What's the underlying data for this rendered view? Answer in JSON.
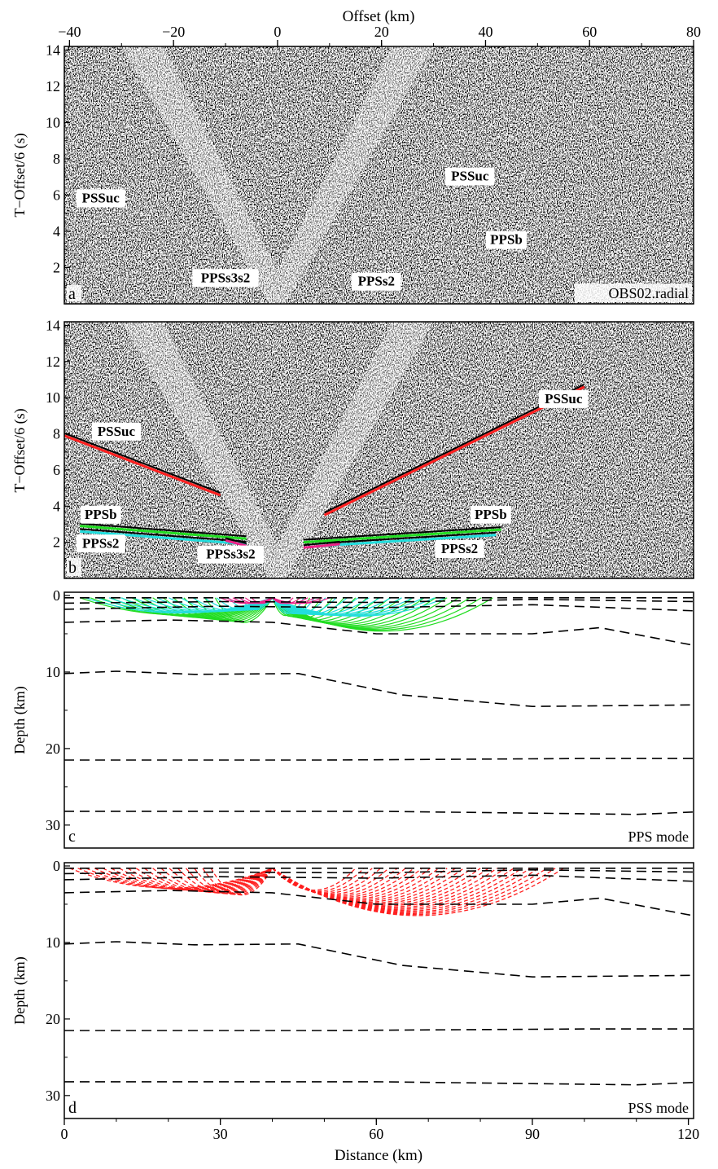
{
  "figure": {
    "top_axis": {
      "label": "Offset (km)",
      "ticks": [
        -40,
        -20,
        0,
        20,
        40,
        60,
        80
      ],
      "range": [
        -41,
        80
      ]
    },
    "bottom_axis": {
      "label": "Distance (km)",
      "ticks": [
        0,
        30,
        60,
        90,
        120
      ],
      "range": [
        0,
        121
      ]
    },
    "panels": [
      {
        "id": "a",
        "letter": "a",
        "ylabel": "T−Offset/6 (s)",
        "yticks": [
          2,
          4,
          6,
          8,
          10,
          12,
          14
        ],
        "ylim": [
          0,
          14
        ],
        "tag": "OBS02.radial",
        "phase_labels": [
          {
            "text": "PSSuc",
            "offset": -34,
            "t": 5.6,
            "color": "#000000"
          },
          {
            "text": "PSSuc",
            "offset": 37,
            "t": 6.8,
            "color": "#000000"
          },
          {
            "text": "PPSb",
            "offset": 44,
            "t": 3.3,
            "color": "#000000"
          },
          {
            "text": "PPSs3s2",
            "offset": -10,
            "t": 1.2,
            "color": "#000000"
          },
          {
            "text": "PPSs2",
            "offset": 19,
            "t": 1.0,
            "color": "#000000"
          }
        ]
      },
      {
        "id": "b",
        "letter": "b",
        "ylabel": "T−Offset/6 (s)",
        "yticks": [
          2,
          4,
          6,
          8,
          10,
          12,
          14
        ],
        "ylim": [
          0,
          14
        ],
        "phase_labels": [
          {
            "text": "PSSuc",
            "offset": -31,
            "t": 7.9,
            "color": "#ff2020"
          },
          {
            "text": "PSSuc",
            "offset": 55,
            "t": 9.7,
            "color": "#ff2020"
          },
          {
            "text": "PPSb",
            "offset": -34,
            "t": 3.3,
            "color": "#22dd22"
          },
          {
            "text": "PPSb",
            "offset": 41,
            "t": 3.3,
            "color": "#22dd22"
          },
          {
            "text": "PPSs2",
            "offset": -34,
            "t": 1.7,
            "color": "#22dddd"
          },
          {
            "text": "PPSs2",
            "offset": 35,
            "t": 1.4,
            "color": "#22dddd"
          },
          {
            "text": "PPSs3s2",
            "offset": -9,
            "t": 1.1,
            "color": "#ee2288"
          }
        ]
      },
      {
        "id": "c",
        "letter": "c",
        "ylabel": "Depth (km)",
        "yticks": [
          0,
          10,
          20,
          30
        ],
        "ylim": [
          33,
          0
        ],
        "tag": "PPS mode"
      },
      {
        "id": "d",
        "letter": "d",
        "ylabel": "Depth (km)",
        "yticks": [
          0,
          10,
          20,
          30
        ],
        "ylim": [
          33,
          0
        ],
        "tag": "PSS mode"
      }
    ],
    "picks": [
      {
        "phase": "PSSuc",
        "color": "#ff2020",
        "points": [
          [
            -41,
            7.9
          ],
          [
            -11,
            4.6
          ]
        ]
      },
      {
        "phase": "PSSuc",
        "color": "#ff2020",
        "points": [
          [
            9,
            3.5
          ],
          [
            59,
            10.6
          ]
        ]
      },
      {
        "phase": "PPSb",
        "color": "#22dd22",
        "points": [
          [
            -38,
            2.9
          ],
          [
            -6,
            2.2
          ]
        ]
      },
      {
        "phase": "PPSb",
        "color": "#22dd22",
        "points": [
          [
            5,
            2.0
          ],
          [
            43,
            2.7
          ]
        ]
      },
      {
        "phase": "PPSs2",
        "color": "#22dddd",
        "points": [
          [
            -38,
            2.6
          ],
          [
            -6,
            1.9
          ]
        ]
      },
      {
        "phase": "PPSs2",
        "color": "#22dddd",
        "points": [
          [
            8,
            1.8
          ],
          [
            42,
            2.4
          ]
        ]
      },
      {
        "phase": "PPSs3s2",
        "color": "#ee2288",
        "points": [
          [
            -10,
            2.1
          ],
          [
            -6,
            1.8
          ]
        ]
      },
      {
        "phase": "PPSs3s2",
        "color": "#ee2288",
        "points": [
          [
            5,
            1.7
          ],
          [
            12,
            1.9
          ]
        ]
      }
    ],
    "interfaces": [
      [
        [
          0,
          0.3
        ],
        [
          40,
          0.3
        ],
        [
          80,
          0.3
        ],
        [
          121,
          0.3
        ]
      ],
      [
        [
          0,
          1.0
        ],
        [
          30,
          0.8
        ],
        [
          60,
          0.9
        ],
        [
          90,
          0.5
        ],
        [
          121,
          0.8
        ]
      ],
      [
        [
          0,
          1.8
        ],
        [
          30,
          1.4
        ],
        [
          60,
          1.6
        ],
        [
          90,
          1.2
        ],
        [
          121,
          2.0
        ]
      ],
      [
        [
          0,
          3.5
        ],
        [
          20,
          3.2
        ],
        [
          40,
          3.5
        ],
        [
          60,
          5.0
        ],
        [
          90,
          5.0
        ],
        [
          103,
          4.2
        ],
        [
          121,
          6.5
        ]
      ],
      [
        [
          0,
          10.2
        ],
        [
          10,
          9.9
        ],
        [
          25,
          10.3
        ],
        [
          45,
          10.2
        ],
        [
          65,
          13.0
        ],
        [
          90,
          14.5
        ],
        [
          121,
          14.3
        ]
      ],
      [
        [
          0,
          21.5
        ],
        [
          50,
          21.5
        ],
        [
          100,
          21.3
        ],
        [
          121,
          21.3
        ]
      ],
      [
        [
          0,
          28.2
        ],
        [
          60,
          28.2
        ],
        [
          110,
          28.6
        ],
        [
          121,
          28.3
        ]
      ]
    ],
    "obs_x": 40,
    "colors": {
      "pss_rays": "#ff2020",
      "pps_green": "#22dd22",
      "pps_cyan": "#22dddd",
      "pps_magenta": "#ee2288"
    }
  }
}
